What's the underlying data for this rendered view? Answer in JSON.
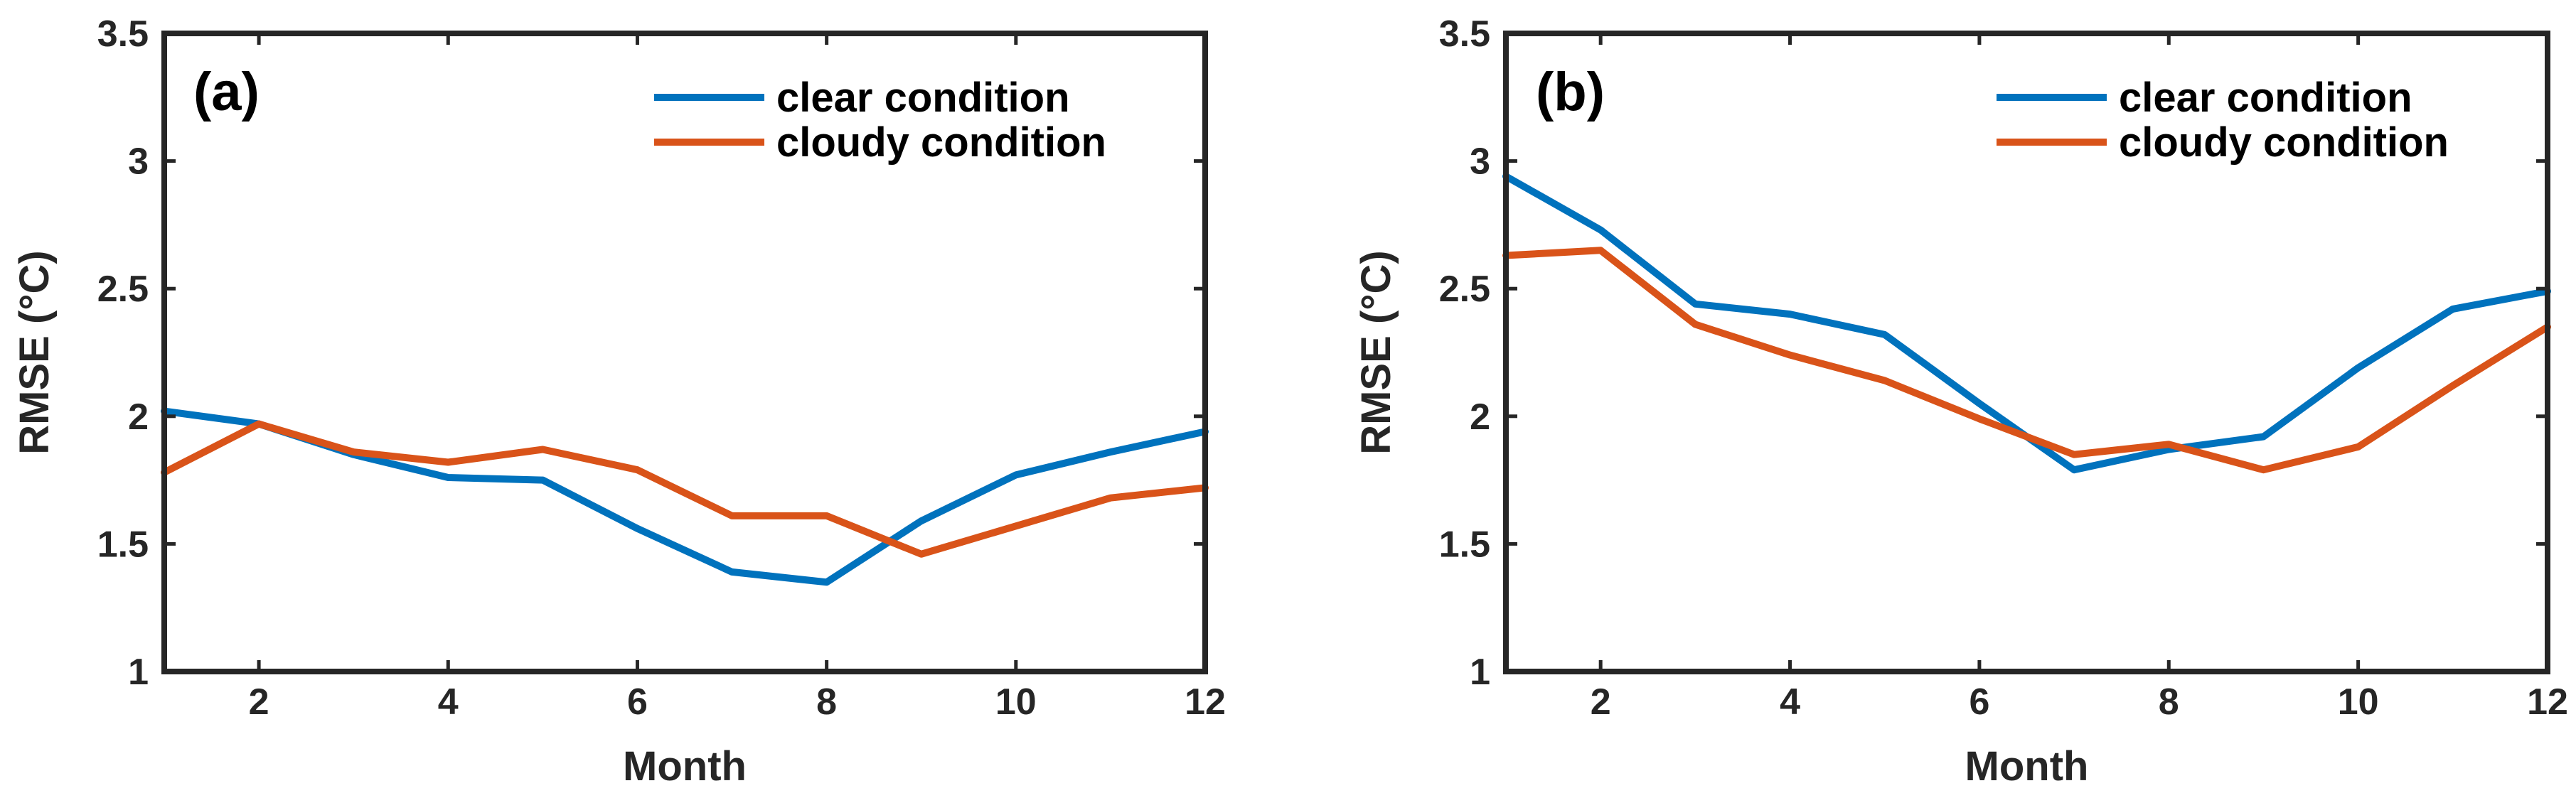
{
  "chart_data": [
    {
      "type": "line",
      "panel_label": "(a)",
      "xlabel": "Month",
      "ylabel": "RMSE (°C)",
      "xlim": [
        1,
        12
      ],
      "ylim": [
        1,
        3.5
      ],
      "xticks": [
        2,
        4,
        6,
        8,
        10,
        12
      ],
      "xtick_labels": [
        "2",
        "4",
        "6",
        "8",
        "10",
        "12"
      ],
      "yticks": [
        1,
        1.5,
        2,
        2.5,
        3,
        3.5
      ],
      "ytick_labels": [
        "1",
        "1.5",
        "2",
        "2.5",
        "3",
        "3.5"
      ],
      "legend_position": "top-right",
      "x": [
        1,
        2,
        3,
        4,
        5,
        6,
        7,
        8,
        9,
        10,
        11,
        12
      ],
      "series": [
        {
          "name": "clear condition",
          "color": "#0072BD",
          "values": [
            2.02,
            1.97,
            1.85,
            1.76,
            1.75,
            1.56,
            1.39,
            1.35,
            1.59,
            1.77,
            1.86,
            1.94
          ]
        },
        {
          "name": "cloudy condition",
          "color": "#D95319",
          "values": [
            1.78,
            1.97,
            1.86,
            1.82,
            1.87,
            1.79,
            1.61,
            1.61,
            1.46,
            1.57,
            1.68,
            1.72
          ]
        }
      ]
    },
    {
      "type": "line",
      "panel_label": "(b)",
      "xlabel": "Month",
      "ylabel": "RMSE (°C)",
      "xlim": [
        1,
        12
      ],
      "ylim": [
        1,
        3.5
      ],
      "xticks": [
        2,
        4,
        6,
        8,
        10,
        12
      ],
      "xtick_labels": [
        "2",
        "4",
        "6",
        "8",
        "10",
        "12"
      ],
      "yticks": [
        1,
        1.5,
        2,
        2.5,
        3,
        3.5
      ],
      "ytick_labels": [
        "1",
        "1.5",
        "2",
        "2.5",
        "3",
        "3.5"
      ],
      "legend_position": "top-right",
      "x": [
        1,
        2,
        3,
        4,
        5,
        6,
        7,
        8,
        9,
        10,
        11,
        12
      ],
      "series": [
        {
          "name": "clear condition",
          "color": "#0072BD",
          "values": [
            2.94,
            2.73,
            2.44,
            2.4,
            2.32,
            2.05,
            1.79,
            1.87,
            1.92,
            2.19,
            2.42,
            2.49
          ]
        },
        {
          "name": "cloudy condition",
          "color": "#D95319",
          "values": [
            2.63,
            2.65,
            2.36,
            2.24,
            2.14,
            1.99,
            1.85,
            1.89,
            1.79,
            1.88,
            2.12,
            2.35
          ]
        }
      ]
    }
  ]
}
